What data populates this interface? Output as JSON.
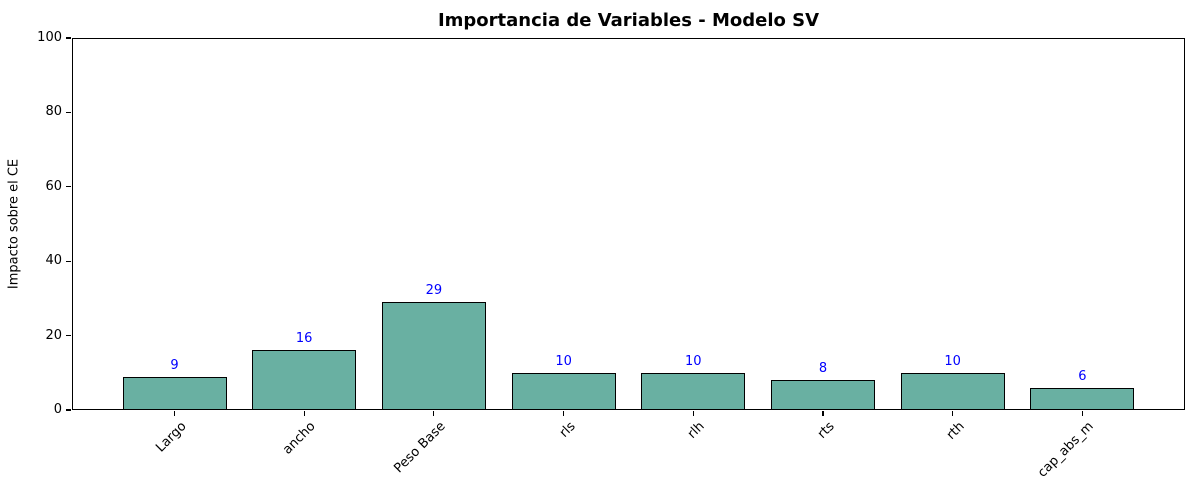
{
  "chart_data": {
    "type": "bar",
    "title": "Importancia de Variables - Modelo SV",
    "xlabel": "",
    "ylabel": "Impacto sobre el CE",
    "categories": [
      "Largo",
      "ancho",
      "Peso Base",
      "rls",
      "rlh",
      "rts",
      "rth",
      "cap_abs_m"
    ],
    "values": [
      9,
      16,
      29,
      10,
      10,
      8,
      10,
      6
    ],
    "value_labels": [
      "9",
      "16",
      "29",
      "10",
      "10",
      "8",
      "10",
      "6"
    ],
    "ylim": [
      0,
      100
    ],
    "yticks": [
      0,
      20,
      40,
      60,
      80,
      100
    ],
    "x_tick_rotation": 45,
    "grid": false,
    "legend": null,
    "colors": {
      "bar_fill": "#69b0a2",
      "bar_edge": "#000000",
      "value_label": "#0000ff",
      "axis": "#000000",
      "background": "#ffffff"
    }
  }
}
